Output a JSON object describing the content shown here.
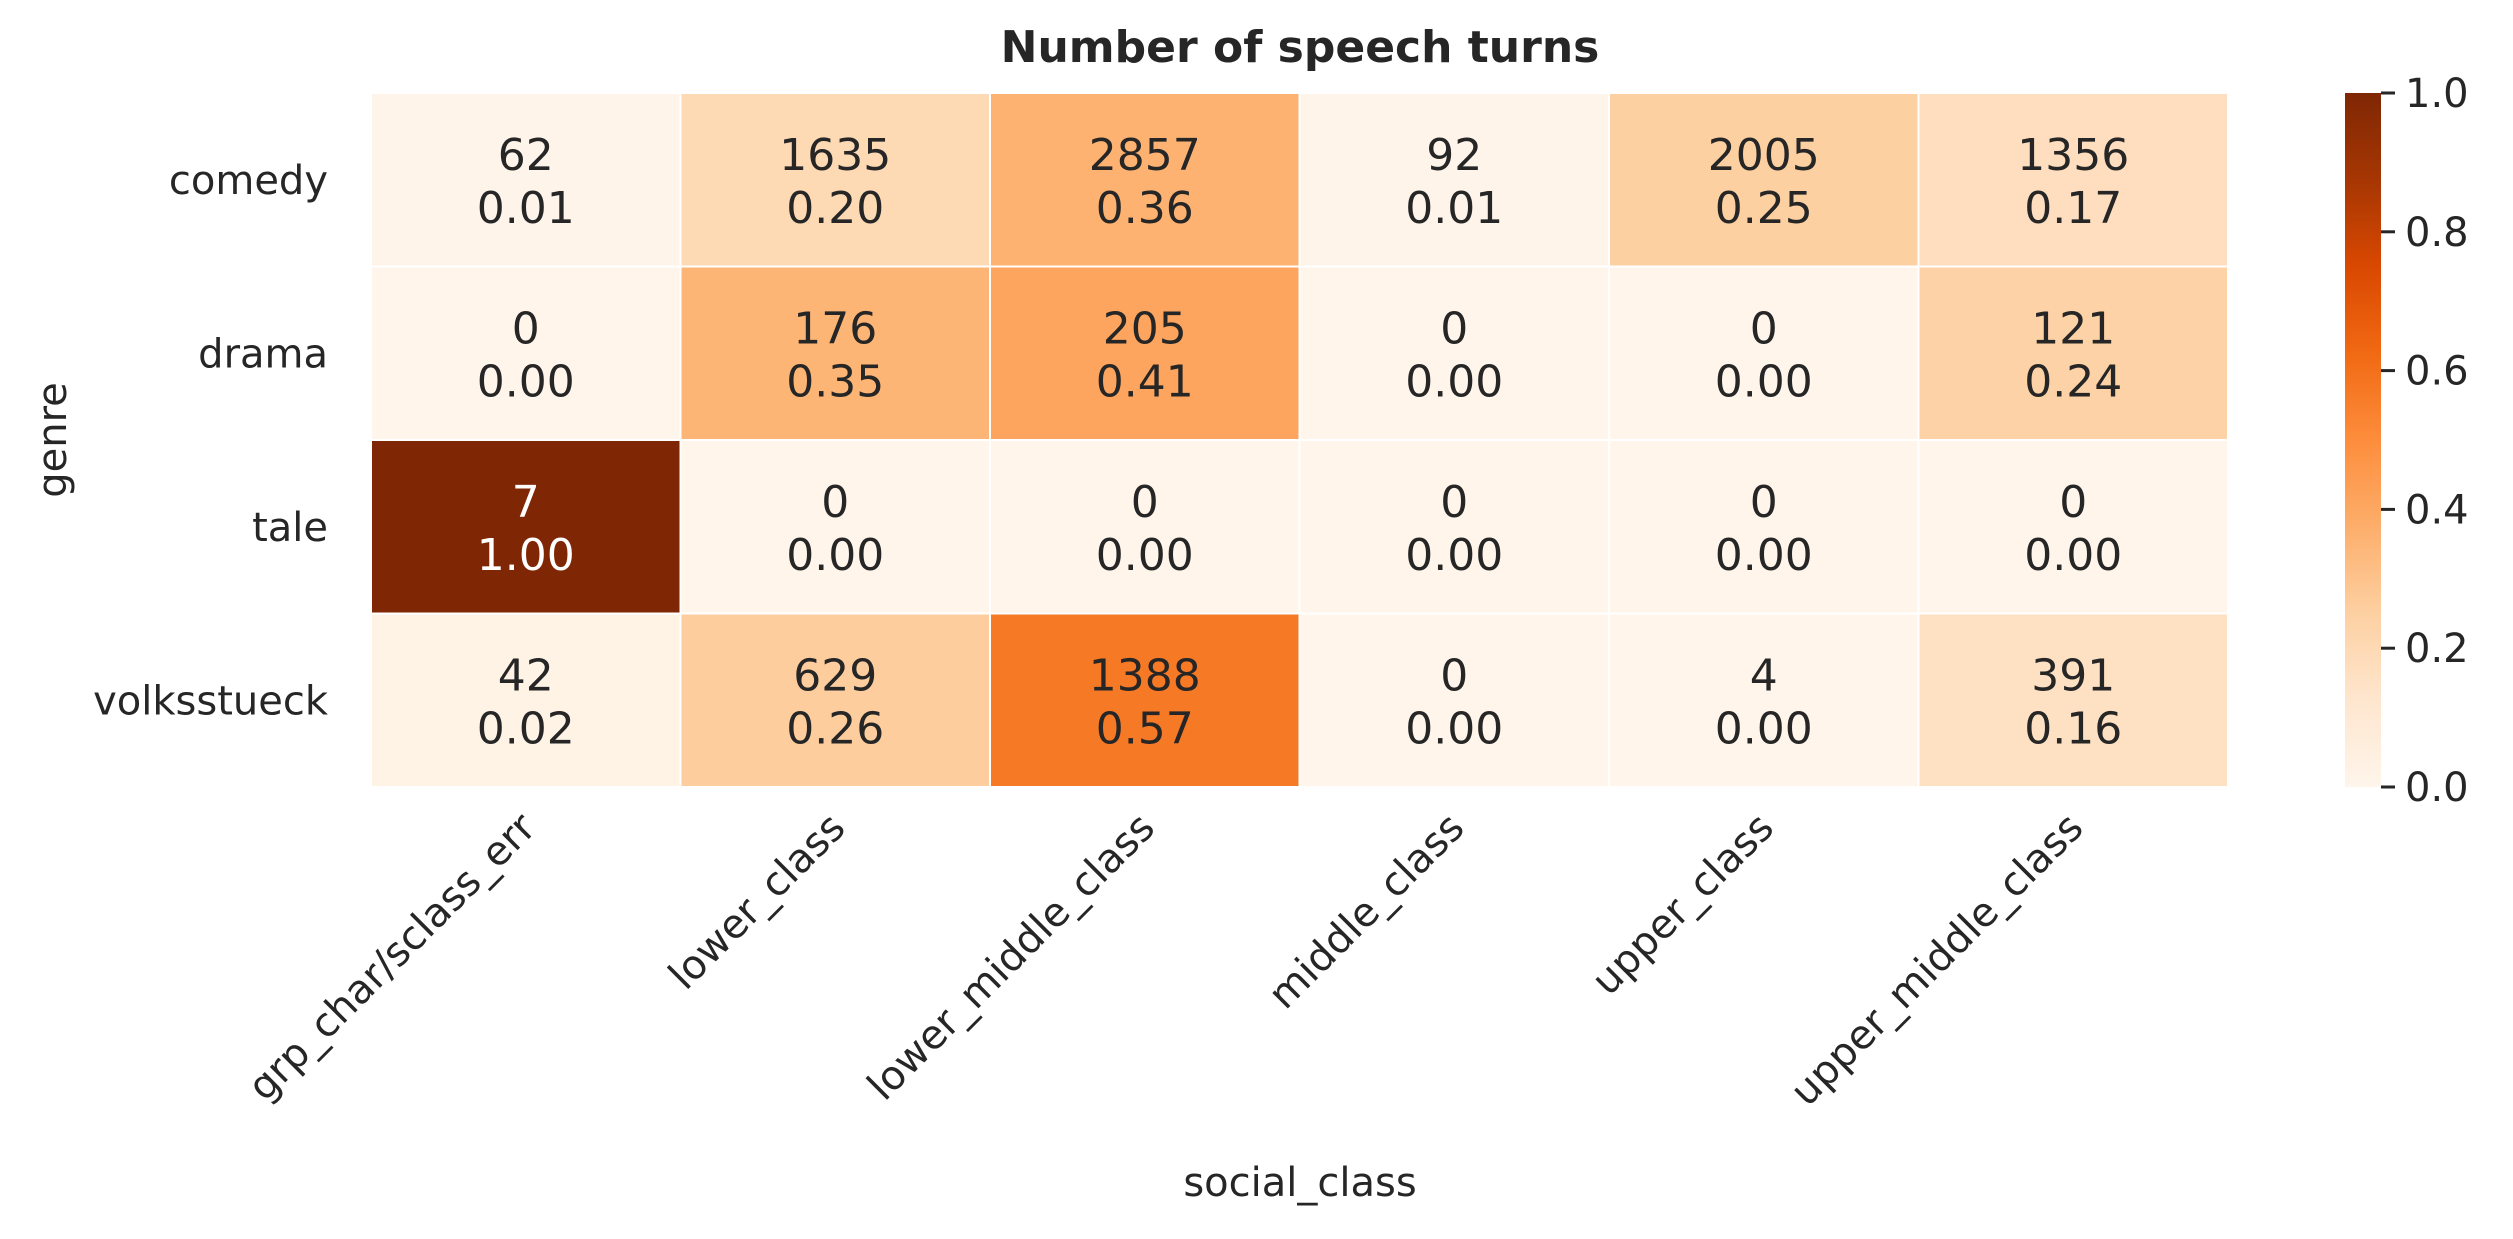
{
  "chart_data": {
    "type": "heatmap",
    "title": "Number of speech turns",
    "xlabel": "social_class",
    "ylabel": "genre",
    "x_categories": [
      "grp_char/sclass_err",
      "lower_class",
      "lower_middle_class",
      "middle_class",
      "upper_class",
      "upper_middle_class"
    ],
    "y_categories": [
      "comedy",
      "drama",
      "tale",
      "volksstueck"
    ],
    "counts": [
      [
        62,
        1635,
        2857,
        92,
        2005,
        1356
      ],
      [
        0,
        176,
        205,
        0,
        0,
        121
      ],
      [
        7,
        0,
        0,
        0,
        0,
        0
      ],
      [
        42,
        629,
        1388,
        0,
        4,
        391
      ]
    ],
    "fractions": [
      [
        "0.01",
        "0.20",
        "0.36",
        "0.01",
        "0.25",
        "0.17"
      ],
      [
        "0.00",
        "0.35",
        "0.41",
        "0.00",
        "0.00",
        "0.24"
      ],
      [
        "1.00",
        "0.00",
        "0.00",
        "0.00",
        "0.00",
        "0.00"
      ],
      [
        "0.02",
        "0.26",
        "0.57",
        "0.00",
        "0.00",
        "0.16"
      ]
    ],
    "colorbar": {
      "range": [
        0.0,
        1.0
      ],
      "ticks": [
        "0.0",
        "0.2",
        "0.4",
        "0.6",
        "0.8",
        "1.0"
      ],
      "colormap": "Oranges",
      "colormap_stops": [
        "#fff5eb",
        "#fee6ce",
        "#fdd0a2",
        "#fdae6b",
        "#fd8d3c",
        "#f16913",
        "#d94801",
        "#a63603",
        "#7f2704"
      ]
    },
    "grid": false,
    "cell_separator_color": "#ffffff",
    "text_color_dark": "#262626",
    "text_color_light": "#ffffff"
  }
}
